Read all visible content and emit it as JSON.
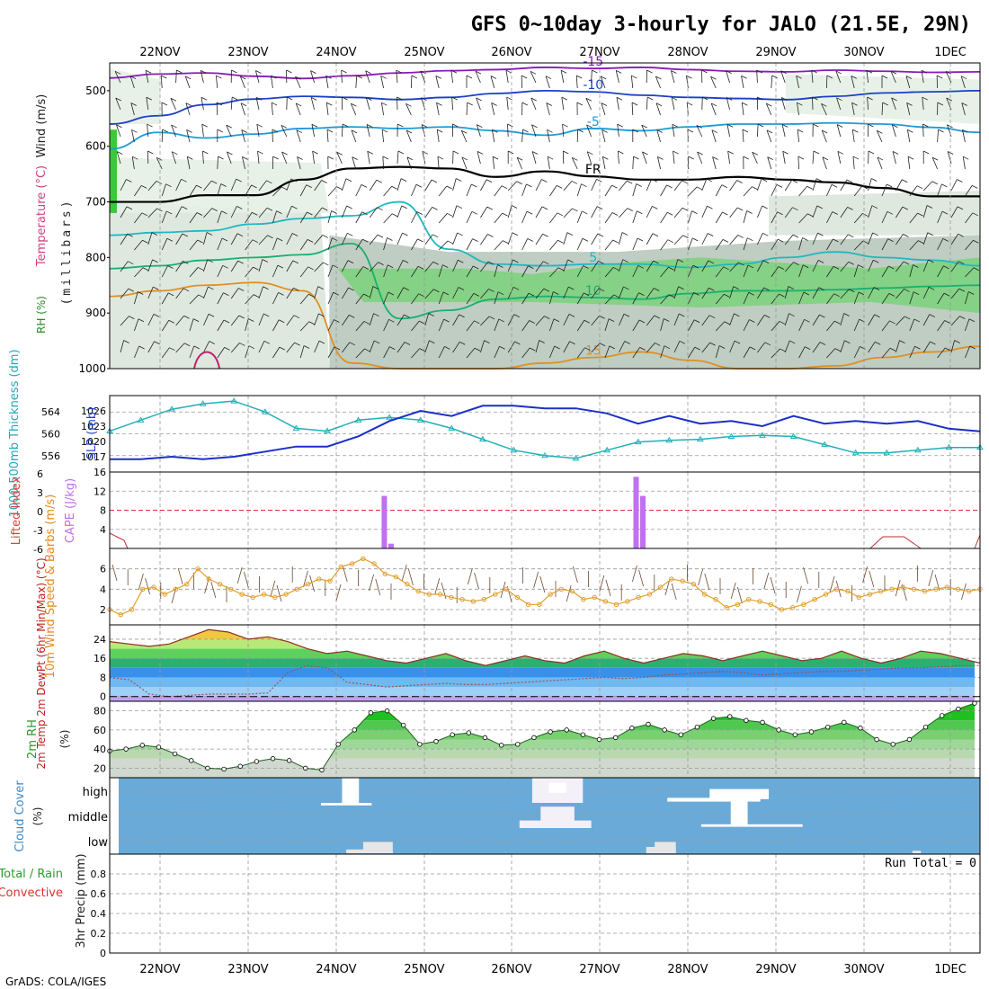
{
  "title": "GFS 0~10day 3-hourly for JALO (21.5E, 29N)",
  "footer": "GrADS: COLA/IGES",
  "x_labels": [
    "22NOV",
    "23NOV",
    "24NOV",
    "25NOV",
    "26NOV",
    "27NOV",
    "28NOV",
    "29NOV",
    "30NOV",
    "1DEC"
  ],
  "colors": {
    "grid": "#999999",
    "frame": "#000000"
  },
  "chart_data": [
    {
      "type": "heatmap",
      "name": "upper-air cross section",
      "ylabel_parts": [
        "Wind (m/s)",
        "Temperature (°C)",
        "RH (%)",
        "(millibars)"
      ],
      "y_ticks": [
        "500",
        "600",
        "700",
        "800",
        "900",
        "1000"
      ],
      "ylim": [
        450,
        1000
      ],
      "contours": [
        {
          "label": "-15",
          "color": "#8a1ab8",
          "levels": [
            477,
            470,
            468,
            474,
            478,
            473,
            468,
            464,
            462,
            458,
            460,
            458,
            462,
            465,
            466,
            463,
            465,
            467,
            466
          ]
        },
        {
          "label": "-10",
          "color": "#1a3fc8",
          "levels": [
            560,
            545,
            525,
            515,
            510,
            512,
            516,
            512,
            505,
            500,
            502,
            508,
            512,
            514,
            516,
            510,
            504,
            502,
            500
          ]
        },
        {
          "label": "-5",
          "color": "#1e9ad8",
          "levels": [
            605,
            575,
            585,
            578,
            568,
            565,
            568,
            565,
            572,
            580,
            568,
            572,
            565,
            560,
            560,
            558,
            560,
            566,
            575
          ]
        },
        {
          "label": "FR",
          "color": "#000000",
          "levels": [
            700,
            700,
            688,
            688,
            660,
            640,
            637,
            640,
            655,
            645,
            654,
            660,
            660,
            655,
            660,
            665,
            675,
            690,
            690
          ]
        },
        {
          "label": "5",
          "color": "#20b8c0",
          "levels": [
            760,
            755,
            752,
            740,
            730,
            725,
            700,
            785,
            812,
            815,
            812,
            812,
            818,
            812,
            800,
            790,
            800,
            805,
            815
          ]
        },
        {
          "label": "10",
          "color": "#18b070",
          "levels": [
            820,
            815,
            805,
            800,
            795,
            775,
            910,
            895,
            875,
            870,
            872,
            875,
            865,
            860,
            860,
            858,
            855,
            852,
            850
          ]
        },
        {
          "label": "15",
          "color": "#e09020",
          "levels": [
            870,
            860,
            850,
            845,
            860,
            990,
            1000,
            1000,
            1000,
            990,
            980,
            970,
            985,
            1000,
            1000,
            995,
            980,
            970,
            960
          ]
        }
      ]
    },
    {
      "type": "line",
      "name": "thickness and SLP",
      "ylabel_left": "1000-500mb Thickness (dm)",
      "ylabel_right": "SLP (mb)",
      "y_ticks_left": [
        "564",
        "560",
        "556"
      ],
      "y_ticks_right": [
        "1026",
        "1023",
        "1020",
        "1017"
      ],
      "ylim_left": [
        553,
        567
      ],
      "ylim_right": [
        1014,
        1029
      ],
      "series": [
        {
          "name": "1000-500mb Thickness",
          "color": "#20b0b8",
          "values": [
            560.5,
            562.5,
            564.5,
            565.5,
            566,
            564,
            561,
            560.5,
            562.5,
            563,
            562.5,
            561,
            559,
            557,
            556,
            555.5,
            557,
            558.5,
            558.8,
            559,
            559.5,
            559.7,
            559.5,
            558,
            556.5,
            556.5,
            557,
            557.5,
            557.5
          ]
        },
        {
          "name": "SLP",
          "color": "#1a30c8",
          "values": [
            1016.5,
            1016.5,
            1017,
            1016.5,
            1017,
            1018,
            1019,
            1019,
            1021,
            1024,
            1026,
            1025,
            1027,
            1027,
            1026.5,
            1026.5,
            1025.5,
            1023.5,
            1025,
            1023.5,
            1024,
            1023,
            1025,
            1023.5,
            1024,
            1023.5,
            1024,
            1022.5,
            1022
          ]
        }
      ]
    },
    {
      "type": "bar",
      "name": "CAPE and lifted index",
      "ylabel_left": "Lifted Index",
      "ylabel_right": "CAPE (J/kg)",
      "y_ticks_left": [
        "6",
        "3",
        "0",
        "-3",
        "-6"
      ],
      "y_ticks_right": [
        "16",
        "12",
        "8",
        "4"
      ],
      "ylim_left": [
        6,
        -6
      ],
      "ylim_right": [
        0,
        16
      ],
      "cape_x": [
        3.25,
        3.33,
        6.23,
        6.31
      ],
      "cape_values": [
        11,
        1,
        15,
        11
      ],
      "cape_color": "#c070f0",
      "li_color": "#c03030",
      "li_baseline": 0
    },
    {
      "type": "line",
      "name": "10m wind speed and barbs",
      "ylabel": "10m Wind Speed & Barbs (m/s)",
      "y_ticks": [
        "6",
        "4",
        "2"
      ],
      "ylim": [
        0.5,
        8
      ],
      "series": [
        {
          "name": "10m Wind Speed",
          "color": "#e0a030",
          "values": [
            2,
            1.5,
            2,
            4,
            4.2,
            3.5,
            4,
            4.5,
            6,
            5,
            4.5,
            4,
            3.5,
            3.2,
            3.5,
            3.2,
            3.5,
            4,
            4.5,
            5,
            4.8,
            6.2,
            6.5,
            7,
            6.5,
            5.5,
            5.2,
            4.5,
            3.8,
            3.5,
            3.5,
            3.2,
            3,
            2.8,
            3,
            3.5,
            4,
            3.2,
            2.5,
            2.5,
            3.5,
            4,
            3.8,
            3,
            3.2,
            2.8,
            2.5,
            2.8,
            3.2,
            3.5,
            4.2,
            5,
            4.8,
            4.5,
            3.5,
            3,
            2.2,
            2.5,
            3,
            2.8,
            2.5,
            2,
            2.2,
            2.5,
            3,
            3.5,
            4,
            3.8,
            3.2,
            3.5,
            3.8,
            4,
            4.2,
            4,
            3.8,
            4,
            4.2,
            4,
            3.8,
            4
          ]
        }
      ]
    },
    {
      "type": "area",
      "name": "2m temperature and dewpoint",
      "ylabel": "2m Temp 2m DewPt (6hr Min/Max) (°C)",
      "y_ticks": [
        "24",
        "16",
        "8",
        "0"
      ],
      "ylim": [
        -2,
        30
      ],
      "series": [
        {
          "name": "2m Temp",
          "color": "#8a3020",
          "values": [
            23,
            22,
            21,
            22,
            25,
            28,
            27,
            24,
            25,
            23,
            20,
            18,
            19,
            17,
            15,
            14,
            16,
            18,
            15,
            13,
            15,
            17,
            15,
            14,
            17,
            19,
            16,
            14,
            16,
            18,
            17,
            15,
            17,
            19,
            17,
            15,
            16,
            19,
            16,
            14,
            16,
            19,
            18,
            16,
            14
          ]
        },
        {
          "name": "2m DewPt",
          "color": "#a05050",
          "values": [
            8,
            7,
            1,
            0,
            0.5,
            1,
            1,
            1,
            1.5,
            10,
            13,
            12,
            6,
            5,
            4,
            4.5,
            5,
            5.5,
            5,
            5,
            5.5,
            6,
            6.5,
            7,
            7.5,
            8,
            7.5,
            8,
            9,
            9.5,
            10,
            10.5,
            10,
            9,
            9.5,
            10,
            10.5,
            10.5,
            11,
            11.5,
            12,
            12,
            12.5,
            13,
            13
          ]
        }
      ]
    },
    {
      "type": "area",
      "name": "2m relative humidity",
      "ylabel": "2m RH (%)",
      "y_ticks": [
        "80",
        "60",
        "40",
        "20"
      ],
      "ylim": [
        10,
        90
      ],
      "series": [
        {
          "name": "2m RH",
          "color": "#202020",
          "values": [
            38,
            40,
            44,
            42,
            35,
            28,
            20,
            19,
            22,
            27,
            30,
            28,
            20,
            18,
            45,
            60,
            78,
            80,
            65,
            45,
            48,
            55,
            57,
            52,
            44,
            45,
            52,
            58,
            60,
            55,
            50,
            52,
            62,
            66,
            60,
            55,
            63,
            72,
            74,
            70,
            68,
            60,
            55,
            58,
            63,
            68,
            62,
            50,
            45,
            50,
            63,
            75,
            82,
            88
          ]
        }
      ]
    },
    {
      "type": "heatmap",
      "name": "cloud cover",
      "ylabel": "Cloud Cover (%)",
      "levels": [
        "high",
        "middle",
        "low"
      ]
    },
    {
      "type": "line",
      "name": "3hr precipitation",
      "ylabel_left": "3hr Precip (mm)",
      "ylabel_side": [
        "Total / Rain",
        "Convective"
      ],
      "y_ticks": [
        "0.8",
        "0.6",
        "0.4",
        "0.2",
        "0"
      ],
      "ylim": [
        0,
        1
      ],
      "run_total": "Run Total = 0",
      "series": []
    }
  ]
}
